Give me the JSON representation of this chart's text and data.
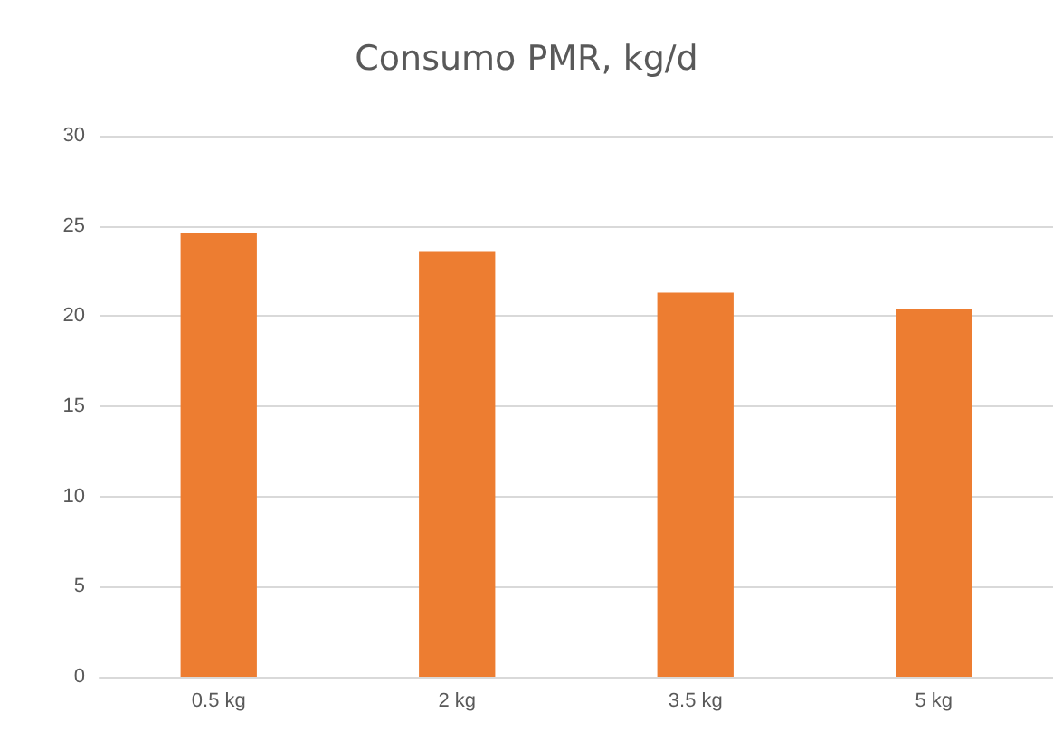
{
  "chart_data": {
    "type": "bar",
    "title": "Consumo PMR, kg/d",
    "categories": [
      "0.5 kg",
      "2 kg",
      "3.5 kg",
      "5 kg"
    ],
    "values": [
      24.6,
      23.6,
      21.3,
      20.4
    ],
    "color": "#ed7d31",
    "ylim": [
      0,
      30
    ],
    "yticks": [
      0,
      5,
      10,
      15,
      20,
      25,
      30
    ],
    "grid": "y"
  }
}
